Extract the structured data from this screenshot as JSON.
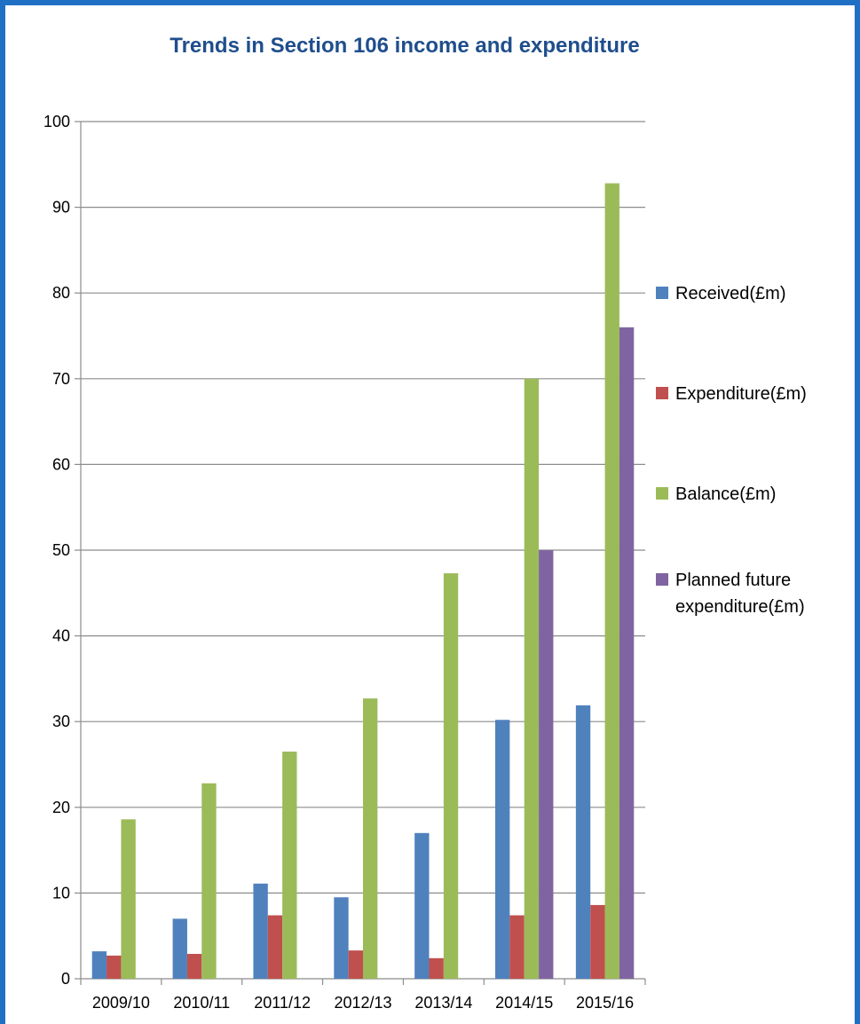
{
  "chart_data": {
    "type": "bar",
    "title": "Trends in Section 106 income and expenditure",
    "xlabel": "",
    "ylabel": "",
    "categories": [
      "2009/10",
      "2010/11",
      "2011/12",
      "2012/13",
      "2013/14",
      "2014/15",
      "2015/16"
    ],
    "ylim": [
      0,
      100
    ],
    "yticks": [
      0,
      10,
      20,
      30,
      40,
      50,
      60,
      70,
      80,
      90,
      100
    ],
    "grid": true,
    "legend_position": "right",
    "series": [
      {
        "name": "Received(£m)",
        "color": "#4f81bd",
        "values": [
          3.2,
          7.0,
          11.1,
          9.5,
          17.0,
          30.2,
          31.9
        ]
      },
      {
        "name": "Expenditure(£m)",
        "color": "#c0504d",
        "values": [
          2.7,
          2.9,
          7.4,
          3.3,
          2.4,
          7.4,
          8.6
        ]
      },
      {
        "name": "Balance(£m)",
        "color": "#9bbb59",
        "values": [
          18.6,
          22.8,
          26.5,
          32.7,
          47.3,
          70.0,
          92.8
        ]
      },
      {
        "name": "Planned future expenditure(£m)",
        "legend_lines": [
          "Planned future",
          "expenditure(£m)"
        ],
        "color": "#8064a2",
        "values": [
          null,
          null,
          null,
          null,
          null,
          50.0,
          76.0
        ]
      }
    ]
  }
}
